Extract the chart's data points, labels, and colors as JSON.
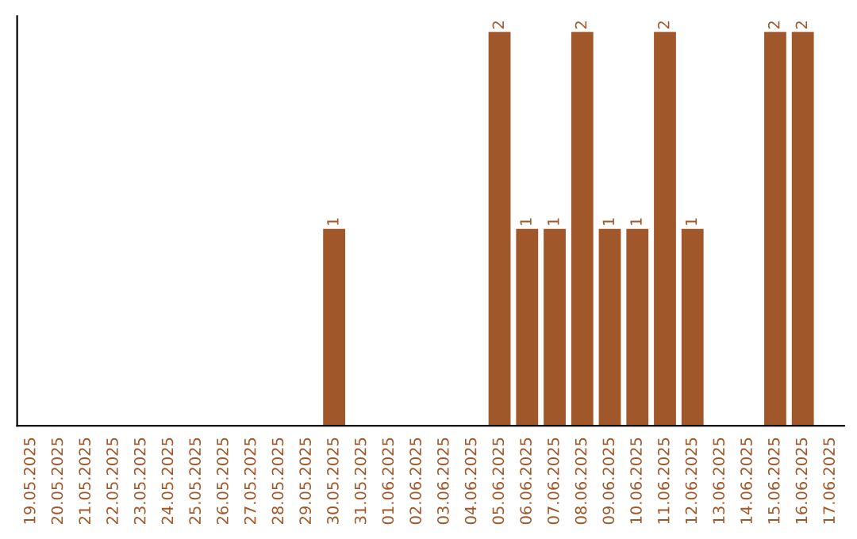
{
  "chart_data": {
    "type": "bar",
    "categories": [
      "19.05.2025",
      "20.05.2025",
      "21.05.2025",
      "22.05.2025",
      "23.05.2025",
      "24.05.2025",
      "25.05.2025",
      "26.05.2025",
      "27.05.2025",
      "28.05.2025",
      "29.05.2025",
      "30.05.2025",
      "31.05.2025",
      "01.06.2025",
      "02.06.2025",
      "03.06.2025",
      "04.06.2025",
      "05.06.2025",
      "06.06.2025",
      "07.06.2025",
      "08.06.2025",
      "09.06.2025",
      "10.06.2025",
      "11.06.2025",
      "12.06.2025",
      "13.06.2025",
      "14.06.2025",
      "15.06.2025",
      "16.06.2025",
      "17.06.2025"
    ],
    "values": [
      0,
      0,
      0,
      0,
      0,
      0,
      0,
      0,
      0,
      0,
      0,
      1,
      0,
      0,
      0,
      0,
      0,
      2,
      1,
      1,
      2,
      1,
      1,
      2,
      1,
      0,
      0,
      2,
      2,
      0
    ],
    "value_labels": [
      null,
      null,
      null,
      null,
      null,
      null,
      null,
      null,
      null,
      null,
      null,
      "1",
      null,
      null,
      null,
      null,
      null,
      "2",
      "1",
      "1",
      "2",
      "1",
      "1",
      "2",
      "1",
      null,
      null,
      "2",
      "2",
      null
    ],
    "color": "#a0582a",
    "ylim": [
      0,
      2.08
    ],
    "tick_labels": "x",
    "grid": false,
    "legend": false
  }
}
